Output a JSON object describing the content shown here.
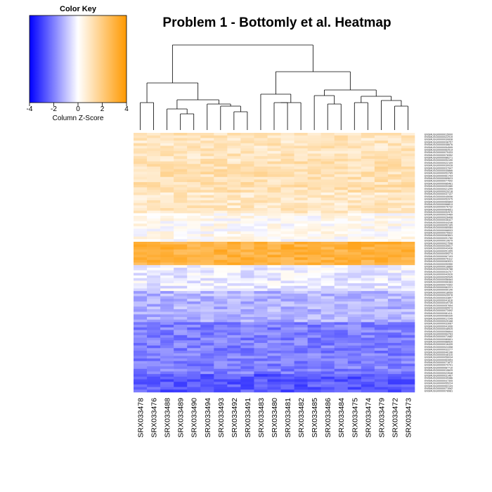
{
  "chart_data": {
    "type": "heatmap",
    "title": "Problem 1 - Bottomly et al. Heatmap",
    "columns": [
      "SRX033478",
      "SRX033476",
      "SRX033488",
      "SRX033489",
      "SRX033490",
      "SRX033494",
      "SRX033493",
      "SRX033492",
      "SRX033491",
      "SRX033483",
      "SRX033480",
      "SRX033481",
      "SRX033482",
      "SRX033485",
      "SRX033486",
      "SRX033484",
      "SRX033475",
      "SRX033474",
      "SRX033479",
      "SRX033472",
      "SRX033473"
    ],
    "row_label_prefix": "ENSMUSG000000",
    "row_count": 100,
    "row_zscore_profile": [
      {
        "rows": [
          0,
          10
        ],
        "z": 1.0
      },
      {
        "rows": [
          11,
          22
        ],
        "z": 1.2
      },
      {
        "rows": [
          23,
          30
        ],
        "z": 0.9
      },
      {
        "rows": [
          31,
          41
        ],
        "z": 0.2
      },
      {
        "rows": [
          42,
          50
        ],
        "z": 3.0
      },
      {
        "rows": [
          51,
          60
        ],
        "z": -0.3
      },
      {
        "rows": [
          61,
          72
        ],
        "z": -1.2
      },
      {
        "rows": [
          73,
          92
        ],
        "z": -2.0
      },
      {
        "rows": [
          93,
          99
        ],
        "z": -2.6
      }
    ],
    "color_key": {
      "title": "Color Key",
      "xlabel": "Column Z-Score",
      "ticks": [
        "-4",
        "-2",
        "0",
        "2",
        "4"
      ],
      "range": [
        -4,
        4
      ],
      "colors": {
        "low": "#0000ff",
        "mid": "#ffffff",
        "high": "#ff9900"
      }
    },
    "dendrogram": {
      "order_note": ""
    }
  }
}
